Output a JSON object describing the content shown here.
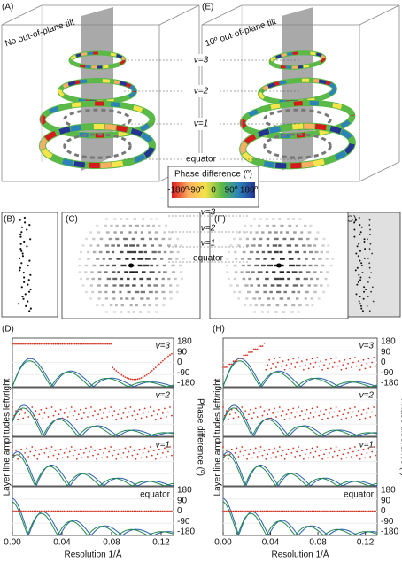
{
  "panel_labels": [
    "(A)",
    "(B)",
    "(C)",
    "(D)",
    "(E)",
    "(F)",
    "(G)",
    "(H)"
  ],
  "tilt_titles": [
    "No out-of-plane tilt",
    "10º out-of-plane tilt"
  ],
  "layer_labels": [
    "v=3",
    "v=2",
    "v=1",
    "equator"
  ],
  "colorbar": {
    "title": "Phase difference (º)",
    "ticks": [
      "-180º",
      "-90º",
      "0",
      "90º",
      "180º"
    ]
  },
  "plot": {
    "y_label": "Layer line amplitudes left/right",
    "y2_label": "Phase difference (º)",
    "x_label": "Resolution 1/Å",
    "xticks": [
      "0.00",
      "0.04",
      "0.08",
      "0.12"
    ],
    "y2ticks": [
      "180",
      "90",
      "0",
      "-90",
      "-180"
    ]
  }
}
